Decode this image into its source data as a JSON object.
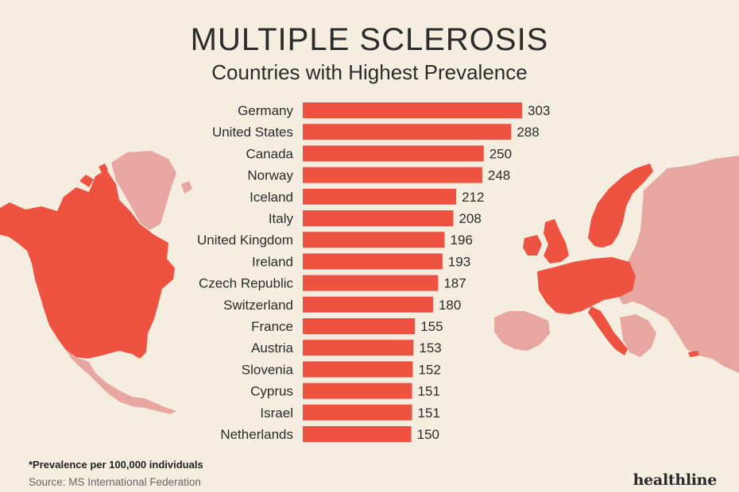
{
  "colors": {
    "background": "#f4ede0",
    "bar": "#ee5240",
    "highlight_region": "#ee5240",
    "other_region": "#e7a7a0",
    "text": "#2b2b2b"
  },
  "title": "MULTIPLE SCLEROSIS",
  "subtitle": "Countries with Highest Prevalence",
  "footnote": "*Prevalence per 100,000 individuals",
  "source": "Source: MS International Federation",
  "brand": "healthline",
  "chart_data": {
    "type": "bar",
    "orientation": "horizontal",
    "title": "MULTIPLE SCLEROSIS",
    "subtitle": "Countries with Highest Prevalence",
    "categories": [
      "Germany",
      "United States",
      "Canada",
      "Norway",
      "Iceland",
      "Italy",
      "United Kingdom",
      "Ireland",
      "Czech Republic",
      "Switzerland",
      "France",
      "Austria",
      "Slovenia",
      "Cyprus",
      "Israel",
      "Netherlands"
    ],
    "values": [
      303,
      288,
      250,
      248,
      212,
      208,
      196,
      193,
      187,
      180,
      155,
      153,
      152,
      151,
      151,
      150
    ],
    "xlim": [
      0,
      303
    ],
    "grid": false,
    "legend": "none"
  }
}
